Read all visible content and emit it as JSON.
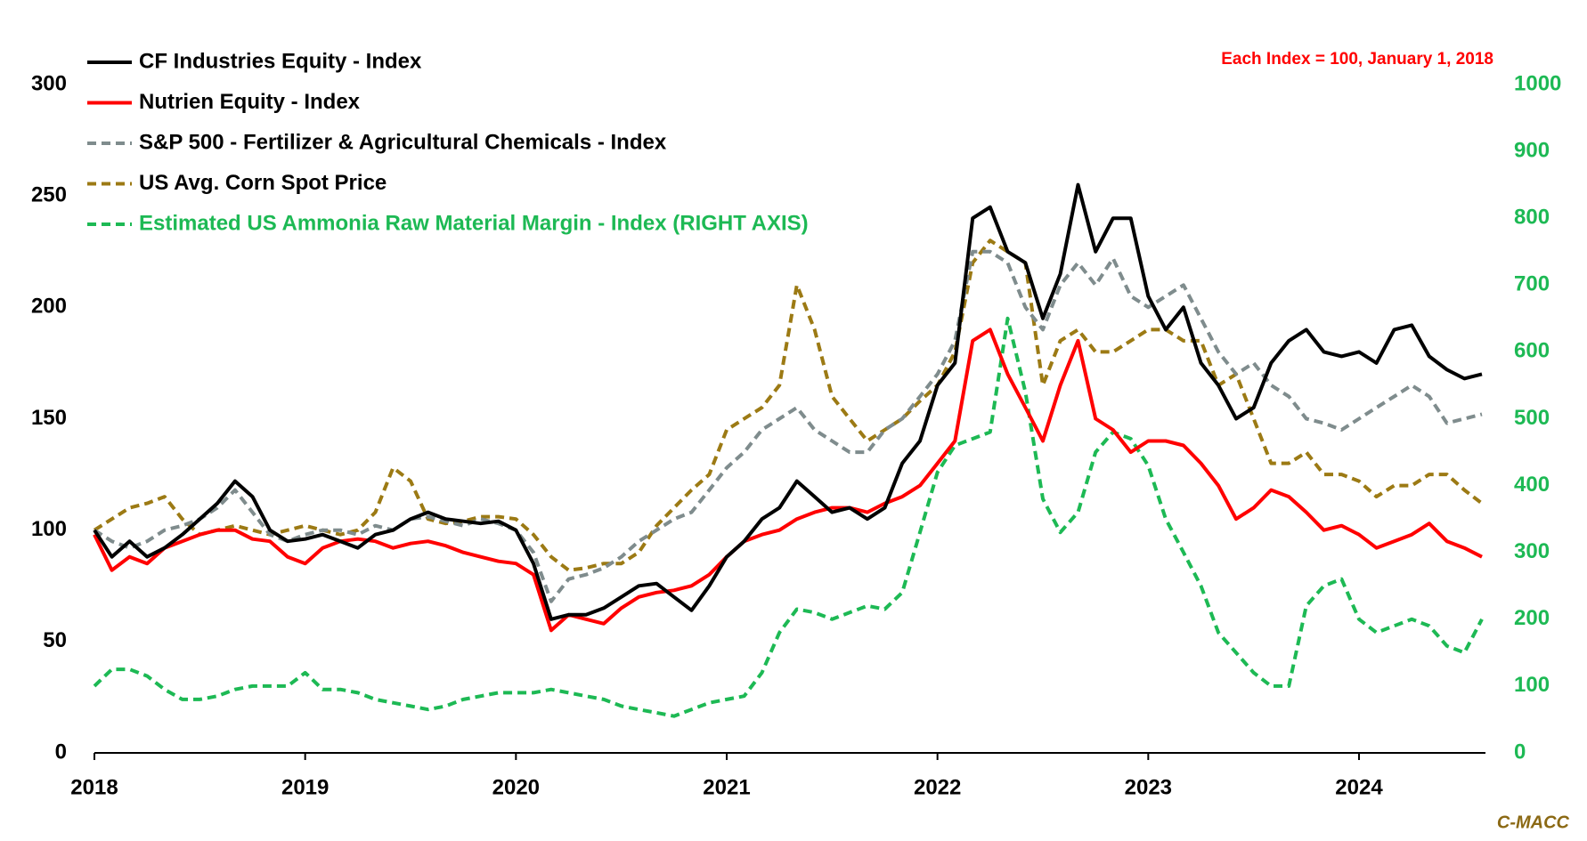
{
  "chart_data": {
    "type": "line",
    "annotation": {
      "text": "Each Index = 100, January 1, 2018",
      "color": "#ff0000"
    },
    "source": {
      "text": "C-MACC",
      "color": "#8b6914"
    },
    "x": [
      2018,
      2018.083,
      2018.167,
      2018.25,
      2018.333,
      2018.417,
      2018.5,
      2018.583,
      2018.667,
      2018.75,
      2018.833,
      2018.917,
      2019,
      2019.083,
      2019.167,
      2019.25,
      2019.333,
      2019.417,
      2019.5,
      2019.583,
      2019.667,
      2019.75,
      2019.833,
      2019.917,
      2020,
      2020.083,
      2020.167,
      2020.25,
      2020.333,
      2020.417,
      2020.5,
      2020.583,
      2020.667,
      2020.75,
      2020.833,
      2020.917,
      2021,
      2021.083,
      2021.167,
      2021.25,
      2021.333,
      2021.417,
      2021.5,
      2021.583,
      2021.667,
      2021.75,
      2021.833,
      2021.917,
      2022,
      2022.083,
      2022.167,
      2022.25,
      2022.333,
      2022.417,
      2022.5,
      2022.583,
      2022.667,
      2022.75,
      2022.833,
      2022.917,
      2023,
      2023.083,
      2023.167,
      2023.25,
      2023.333,
      2023.417,
      2023.5,
      2023.583,
      2023.667,
      2023.75,
      2023.833,
      2023.917,
      2024,
      2024.083,
      2024.167,
      2024.25,
      2024.333,
      2024.417,
      2024.5,
      2024.583
    ],
    "xlim": [
      2018,
      2024.6
    ],
    "xticks": [
      2018,
      2019,
      2020,
      2021,
      2022,
      2023,
      2024
    ],
    "ylim": [
      0,
      300
    ],
    "yticks": [
      0,
      50,
      100,
      150,
      200,
      250,
      300
    ],
    "y2lim": [
      0,
      1000
    ],
    "y2ticks": [
      0,
      100,
      200,
      300,
      400,
      500,
      600,
      700,
      800,
      900,
      1000
    ],
    "series": [
      {
        "name": "CF Industries Equity - Index",
        "color": "#000000",
        "dash": false,
        "values": [
          100,
          88,
          95,
          88,
          92,
          98,
          105,
          112,
          122,
          115,
          100,
          95,
          96,
          98,
          95,
          92,
          98,
          100,
          105,
          108,
          105,
          104,
          103,
          104,
          100,
          85,
          60,
          62,
          62,
          65,
          70,
          75,
          76,
          70,
          64,
          75,
          88,
          95,
          105,
          110,
          122,
          115,
          108,
          110,
          105,
          110,
          130,
          140,
          165,
          175,
          240,
          245,
          225,
          220,
          195,
          215,
          255,
          225,
          240,
          240,
          205,
          190,
          200,
          175,
          165,
          150,
          155,
          175,
          185,
          190,
          180,
          178,
          180,
          175,
          190,
          192,
          178,
          172,
          168,
          170
        ]
      },
      {
        "name": "Nutrien Equity - Index",
        "color": "#ff0000",
        "dash": false,
        "values": [
          98,
          82,
          88,
          85,
          92,
          95,
          98,
          100,
          100,
          96,
          95,
          88,
          85,
          92,
          95,
          96,
          95,
          92,
          94,
          95,
          93,
          90,
          88,
          86,
          85,
          80,
          55,
          62,
          60,
          58,
          65,
          70,
          72,
          73,
          75,
          80,
          88,
          95,
          98,
          100,
          105,
          108,
          110,
          110,
          108,
          112,
          115,
          120,
          130,
          140,
          185,
          190,
          170,
          155,
          140,
          165,
          185,
          150,
          145,
          135,
          140,
          140,
          138,
          130,
          120,
          105,
          110,
          118,
          115,
          108,
          100,
          102,
          98,
          92,
          95,
          98,
          103,
          95,
          92,
          88
        ]
      },
      {
        "name": "S&P 500 - Fertilizer & Agricultural Chemicals - Index",
        "color": "#7f8c8d",
        "dash": true,
        "values": [
          100,
          95,
          92,
          95,
          100,
          102,
          105,
          110,
          118,
          108,
          98,
          95,
          98,
          100,
          100,
          98,
          102,
          100,
          105,
          106,
          104,
          102,
          105,
          103,
          100,
          90,
          68,
          78,
          80,
          83,
          88,
          95,
          100,
          105,
          108,
          118,
          128,
          135,
          145,
          150,
          155,
          145,
          140,
          135,
          135,
          145,
          150,
          160,
          170,
          185,
          225,
          225,
          220,
          200,
          190,
          210,
          220,
          210,
          222,
          205,
          200,
          205,
          210,
          195,
          180,
          170,
          175,
          165,
          160,
          150,
          148,
          145,
          150,
          155,
          160,
          165,
          160,
          148,
          150,
          152
        ]
      },
      {
        "name": "US Avg. Corn Spot Price",
        "color": "#9c7a14",
        "dash": true,
        "values": [
          100,
          105,
          110,
          112,
          115,
          105,
          98,
          100,
          102,
          100,
          98,
          100,
          102,
          100,
          98,
          100,
          108,
          128,
          122,
          105,
          103,
          104,
          106,
          106,
          105,
          98,
          88,
          82,
          83,
          85,
          85,
          90,
          102,
          110,
          118,
          125,
          145,
          150,
          155,
          165,
          210,
          190,
          160,
          150,
          140,
          145,
          150,
          158,
          165,
          180,
          220,
          230,
          225,
          220,
          165,
          185,
          190,
          180,
          180,
          185,
          190,
          190,
          185,
          185,
          165,
          170,
          150,
          130,
          130,
          135,
          125,
          125,
          122,
          115,
          120,
          120,
          125,
          125,
          118,
          112
        ]
      },
      {
        "name": "Estimated US Ammonia Raw Material Margin - Index (RIGHT AXIS)",
        "color": "#1db954",
        "dash": true,
        "axis": "y2",
        "values": [
          100,
          125,
          125,
          115,
          95,
          80,
          80,
          85,
          95,
          100,
          100,
          100,
          120,
          95,
          95,
          90,
          80,
          75,
          70,
          65,
          70,
          80,
          85,
          90,
          90,
          90,
          95,
          90,
          85,
          80,
          70,
          65,
          60,
          55,
          65,
          75,
          80,
          85,
          120,
          180,
          215,
          210,
          200,
          210,
          220,
          215,
          240,
          330,
          420,
          460,
          470,
          480,
          650,
          540,
          380,
          330,
          360,
          450,
          480,
          470,
          430,
          350,
          300,
          250,
          180,
          150,
          120,
          100,
          100,
          220,
          250,
          260,
          200,
          180,
          190,
          200,
          190,
          160,
          150,
          200
        ]
      }
    ]
  }
}
